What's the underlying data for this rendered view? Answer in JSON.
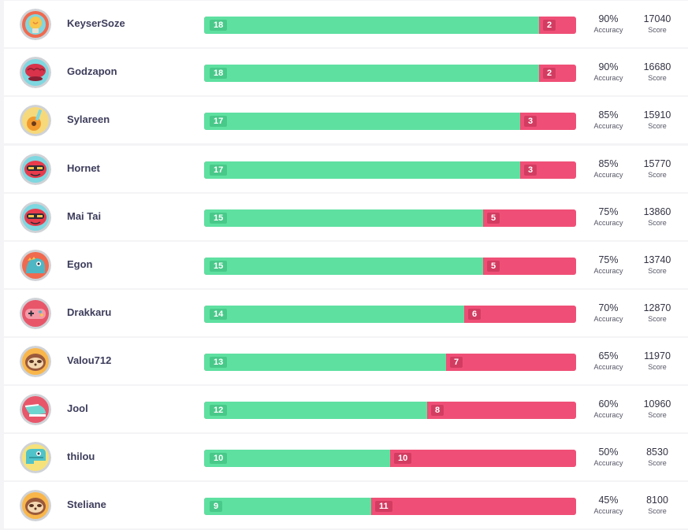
{
  "labels": {
    "accuracy": "Accuracy",
    "score": "Score"
  },
  "colors": {
    "correct": "#5ee0a1",
    "incorrect": "#ef4f76"
  },
  "players": [
    {
      "name": "KeyserSoze",
      "avatar": "lightbulb-icon",
      "correct": "18",
      "incorrect": "2",
      "accuracy": "90%",
      "score": "17040"
    },
    {
      "name": "Godzapon",
      "avatar": "brain-icon",
      "correct": "18",
      "incorrect": "2",
      "accuracy": "90%",
      "score": "16680"
    },
    {
      "name": "Sylareen",
      "avatar": "guitar-icon",
      "correct": "17",
      "incorrect": "3",
      "accuracy": "85%",
      "score": "15910"
    },
    {
      "name": "Hornet",
      "avatar": "sunglasses-face-icon",
      "correct": "17",
      "incorrect": "3",
      "accuracy": "85%",
      "score": "15770"
    },
    {
      "name": "Mai Tai",
      "avatar": "sunglasses-face-icon",
      "correct": "15",
      "incorrect": "5",
      "accuracy": "75%",
      "score": "13860"
    },
    {
      "name": "Egon",
      "avatar": "dinosaur-icon",
      "correct": "15",
      "incorrect": "5",
      "accuracy": "75%",
      "score": "13740"
    },
    {
      "name": "Drakkaru",
      "avatar": "gamepad-icon",
      "correct": "14",
      "incorrect": "6",
      "accuracy": "70%",
      "score": "12870"
    },
    {
      "name": "Valou712",
      "avatar": "sloth-icon",
      "correct": "13",
      "incorrect": "7",
      "accuracy": "65%",
      "score": "11970"
    },
    {
      "name": "Jool",
      "avatar": "shoe-icon",
      "correct": "12",
      "incorrect": "8",
      "accuracy": "60%",
      "score": "10960"
    },
    {
      "name": "thilou",
      "avatar": "monster-icon",
      "correct": "10",
      "incorrect": "10",
      "accuracy": "50%",
      "score": "8530"
    },
    {
      "name": "Steliane",
      "avatar": "sloth-icon",
      "correct": "9",
      "incorrect": "11",
      "accuracy": "45%",
      "score": "8100"
    }
  ]
}
